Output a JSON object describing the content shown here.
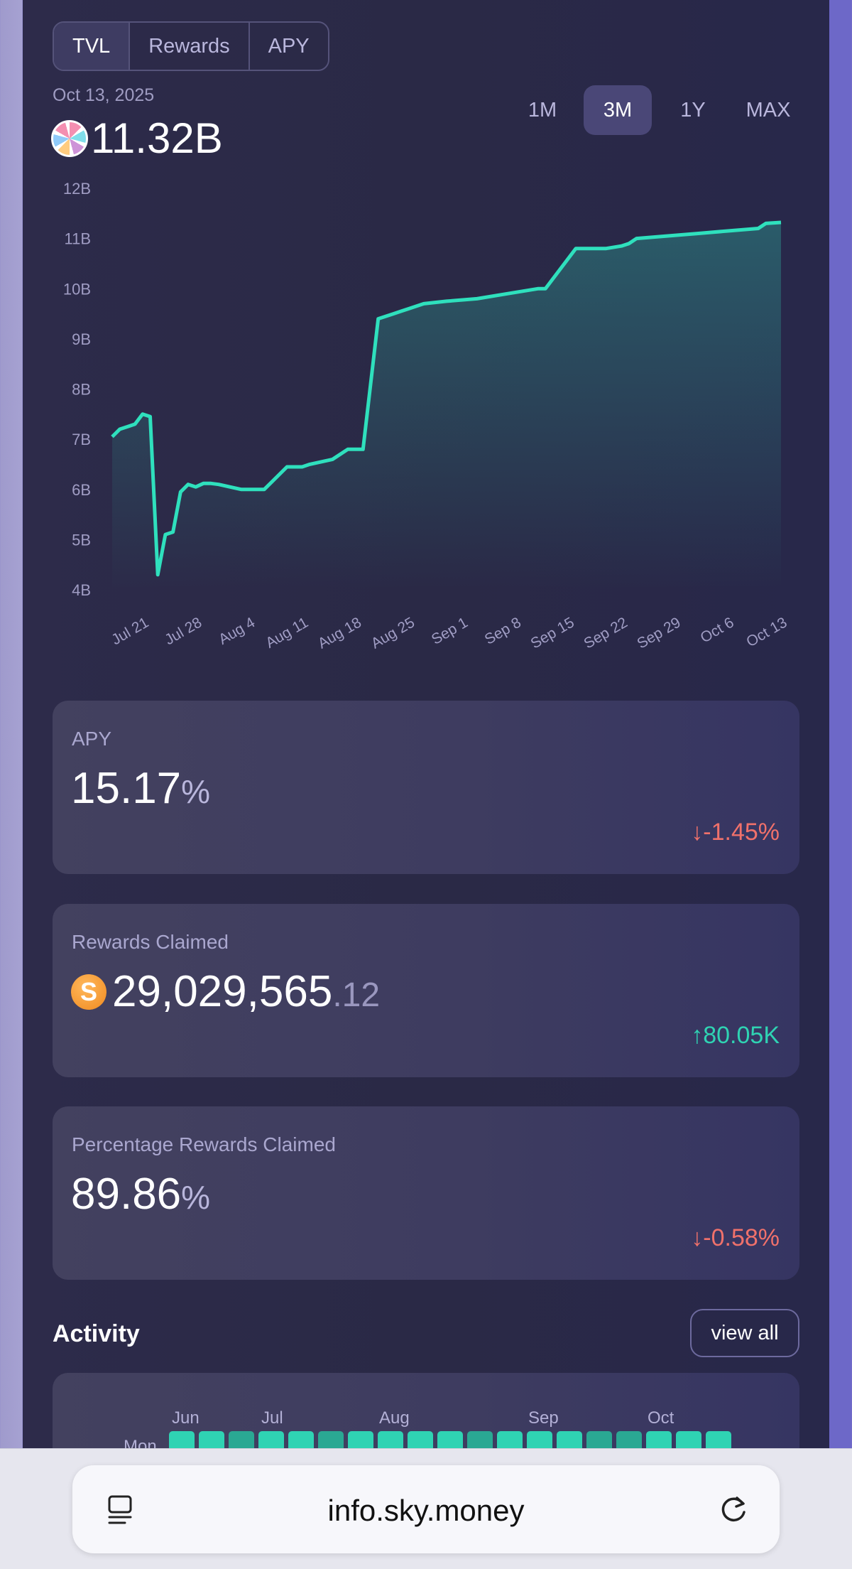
{
  "tabs": [
    {
      "label": "TVL",
      "active": true
    },
    {
      "label": "Rewards",
      "active": false
    },
    {
      "label": "APY",
      "active": false
    }
  ],
  "date": "Oct 13, 2025",
  "tvl_value": "11.32B",
  "ranges": [
    {
      "label": "1M",
      "active": false
    },
    {
      "label": "3M",
      "active": true
    },
    {
      "label": "1Y",
      "active": false
    },
    {
      "label": "MAX",
      "active": false
    }
  ],
  "chart_data": {
    "type": "area",
    "y_ticks": [
      "12B",
      "11B",
      "10B",
      "9B",
      "8B",
      "7B",
      "6B",
      "5B",
      "4B"
    ],
    "ylim": [
      4,
      12
    ],
    "x_ticks": [
      "Jul 21",
      "Jul 28",
      "Aug 4",
      "Aug 11",
      "Aug 18",
      "Aug 25",
      "Sep 1",
      "Sep 8",
      "Sep 15",
      "Sep 22",
      "Sep 29",
      "Oct 6",
      "Oct 13"
    ],
    "x": [
      "2025-07-17",
      "2025-07-18",
      "2025-07-19",
      "2025-07-20",
      "2025-07-21",
      "2025-07-22",
      "2025-07-23",
      "2025-07-24",
      "2025-07-25",
      "2025-07-26",
      "2025-07-27",
      "2025-07-28",
      "2025-07-29",
      "2025-07-30",
      "2025-07-31",
      "2025-08-03",
      "2025-08-06",
      "2025-08-09",
      "2025-08-11",
      "2025-08-12",
      "2025-08-15",
      "2025-08-17",
      "2025-08-19",
      "2025-08-21",
      "2025-08-22",
      "2025-08-23",
      "2025-08-24",
      "2025-08-25",
      "2025-08-27",
      "2025-08-30",
      "2025-09-03",
      "2025-09-07",
      "2025-09-11",
      "2025-09-12",
      "2025-09-16",
      "2025-09-20",
      "2025-09-22",
      "2025-09-23",
      "2025-09-24",
      "2025-09-28",
      "2025-10-02",
      "2025-10-06",
      "2025-10-10",
      "2025-10-11",
      "2025-10-13"
    ],
    "values": [
      7.05,
      7.2,
      7.25,
      7.3,
      7.5,
      7.45,
      4.3,
      5.1,
      5.15,
      5.95,
      6.1,
      6.05,
      6.12,
      6.12,
      6.1,
      6.0,
      6.0,
      6.45,
      6.45,
      6.5,
      6.6,
      6.8,
      6.8,
      9.4,
      9.45,
      9.5,
      9.55,
      9.6,
      9.7,
      9.75,
      9.8,
      9.9,
      10.0,
      10.0,
      10.8,
      10.8,
      10.85,
      10.9,
      11.0,
      11.05,
      11.1,
      11.15,
      11.2,
      11.3,
      11.32
    ],
    "color": "#2fe0bd",
    "grid": false
  },
  "cards": {
    "apy": {
      "label": "APY",
      "value": "15.17",
      "unit": "%",
      "change": "↓-1.45%"
    },
    "rewards": {
      "label": "Rewards Claimed",
      "value": "29,029,565",
      "decimals": ".12",
      "change": "↑80.05K",
      "icon": "S"
    },
    "percentage": {
      "label": "Percentage Rewards Claimed",
      "value": "89.86",
      "unit": "%",
      "change": "↓-0.58%"
    }
  },
  "activity": {
    "title": "Activity",
    "view_all": "view all",
    "months": [
      "Jun",
      "Jul",
      "Aug",
      "Sep",
      "Oct"
    ],
    "day_label": "Mon"
  },
  "browser": {
    "url": "info.sky.money"
  }
}
